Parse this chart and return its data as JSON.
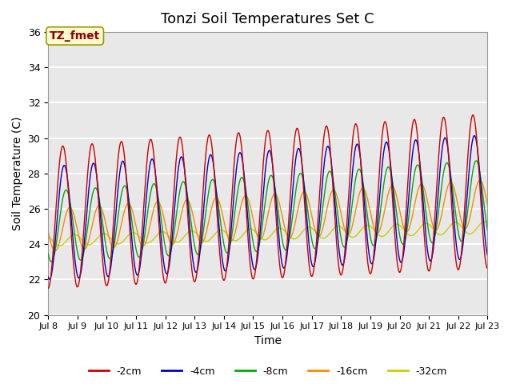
{
  "title": "Tonzi Soil Temperatures Set C",
  "xlabel": "Time",
  "ylabel": "Soil Temperature (C)",
  "ylim": [
    20,
    36
  ],
  "xlim_days": [
    8,
    23
  ],
  "annotation_label": "TZ_fmet",
  "annotation_color": "#8B0000",
  "annotation_bg": "#FFFACD",
  "legend_labels": [
    "-2cm",
    "-4cm",
    "-8cm",
    "-16cm",
    "-32cm"
  ],
  "legend_colors": [
    "#CC0000",
    "#0000CC",
    "#00AA00",
    "#FF8800",
    "#CCCC00"
  ],
  "bg_color": "#E8E8E8",
  "grid_color": "white",
  "title_fontsize": 13,
  "axis_label_fontsize": 10
}
